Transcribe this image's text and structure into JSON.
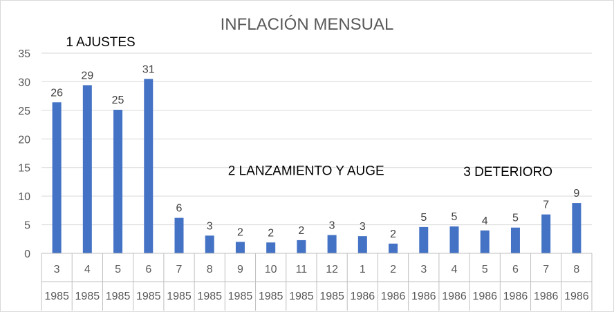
{
  "chart_data": {
    "type": "bar",
    "title": "INFLACIÓN MENSUAL",
    "xlabel": "",
    "ylabel": "",
    "ylim": [
      0,
      35
    ],
    "yticks": [
      0,
      5,
      10,
      15,
      20,
      25,
      30,
      35
    ],
    "grid": true,
    "legend": "none",
    "categories": [
      {
        "month": "3",
        "year": "1985"
      },
      {
        "month": "4",
        "year": "1985"
      },
      {
        "month": "5",
        "year": "1985"
      },
      {
        "month": "6",
        "year": "1985"
      },
      {
        "month": "7",
        "year": "1985"
      },
      {
        "month": "8",
        "year": "1985"
      },
      {
        "month": "9",
        "year": "1985"
      },
      {
        "month": "10",
        "year": "1985"
      },
      {
        "month": "11",
        "year": "1985"
      },
      {
        "month": "12",
        "year": "1985"
      },
      {
        "month": "1",
        "year": "1986"
      },
      {
        "month": "2",
        "year": "1986"
      },
      {
        "month": "3",
        "year": "1986"
      },
      {
        "month": "4",
        "year": "1986"
      },
      {
        "month": "5",
        "year": "1986"
      },
      {
        "month": "6",
        "year": "1986"
      },
      {
        "month": "7",
        "year": "1986"
      },
      {
        "month": "8",
        "year": "1986"
      }
    ],
    "values": [
      26.4,
      29.4,
      25.1,
      30.5,
      6.2,
      3.1,
      2.0,
      1.9,
      2.3,
      3.2,
      3.0,
      1.7,
      4.6,
      4.7,
      4.0,
      4.5,
      6.8,
      8.8
    ],
    "data_labels": [
      "26",
      "29",
      "25",
      "31",
      "6",
      "3",
      "2",
      "2",
      "2",
      "3",
      "3",
      "2",
      "5",
      "5",
      "4",
      "5",
      "7",
      "9"
    ],
    "annotations": [
      {
        "text": "1 AJUSTES",
        "anchor_index": 0.8,
        "y": 36.2
      },
      {
        "text": "2 LANZAMIENTO Y AUGE",
        "anchor_index": 6.1,
        "y": 13.7
      },
      {
        "text": "3 DETERIORO",
        "anchor_index": 13.8,
        "y": 13.5
      }
    ],
    "colors": {
      "bar": "#4472c4",
      "grid": "#d9d9d9",
      "text": "#595959"
    }
  }
}
